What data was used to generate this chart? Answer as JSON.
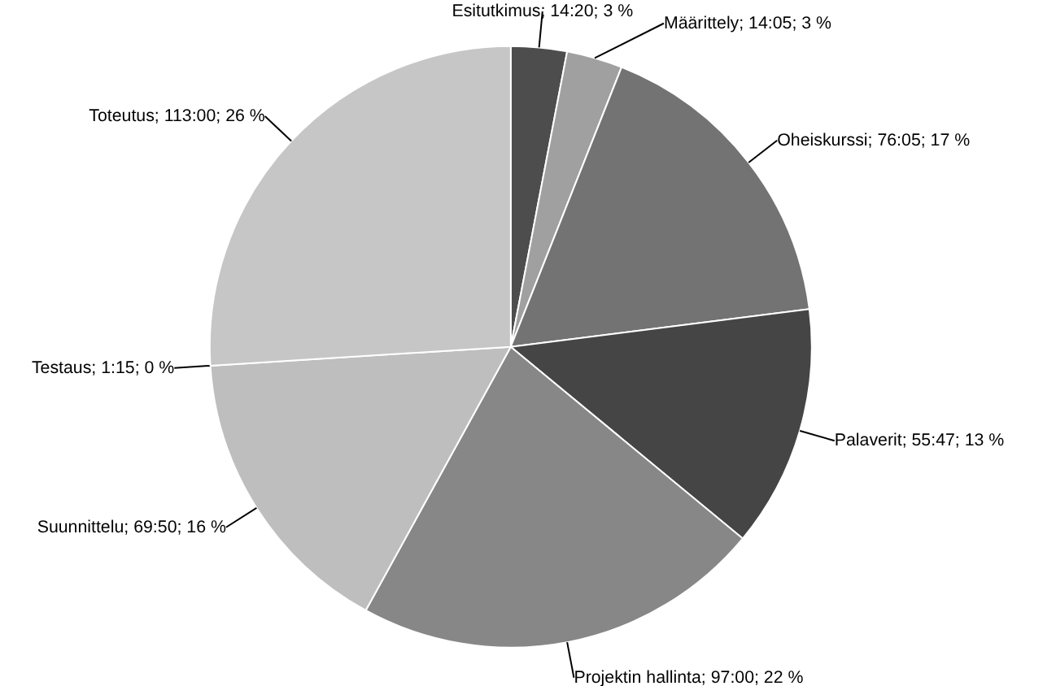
{
  "chart_data": {
    "type": "pie",
    "categories": [
      "Esitutkimus",
      "Määrittely",
      "Oheiskurssi",
      "Palaverit",
      "Projektin hallinta",
      "Suunnittelu",
      "Testaus",
      "Toteutus"
    ],
    "values": [
      3,
      3,
      17,
      13,
      22,
      16,
      0,
      26
    ],
    "value_labels": [
      "14:20; 3 %",
      "14:05; 3 %",
      "76:05; 17 %",
      "55:47; 13 %",
      "97:00; 22 %",
      "69:50; 16 %",
      "1:15; 0 %",
      "113:00; 26 %"
    ],
    "colors": [
      "#4d4d4d",
      "#a0a0a0",
      "#737373",
      "#454545",
      "#878787",
      "#bebebe",
      "#8c8c8c",
      "#c6c6c6"
    ]
  }
}
